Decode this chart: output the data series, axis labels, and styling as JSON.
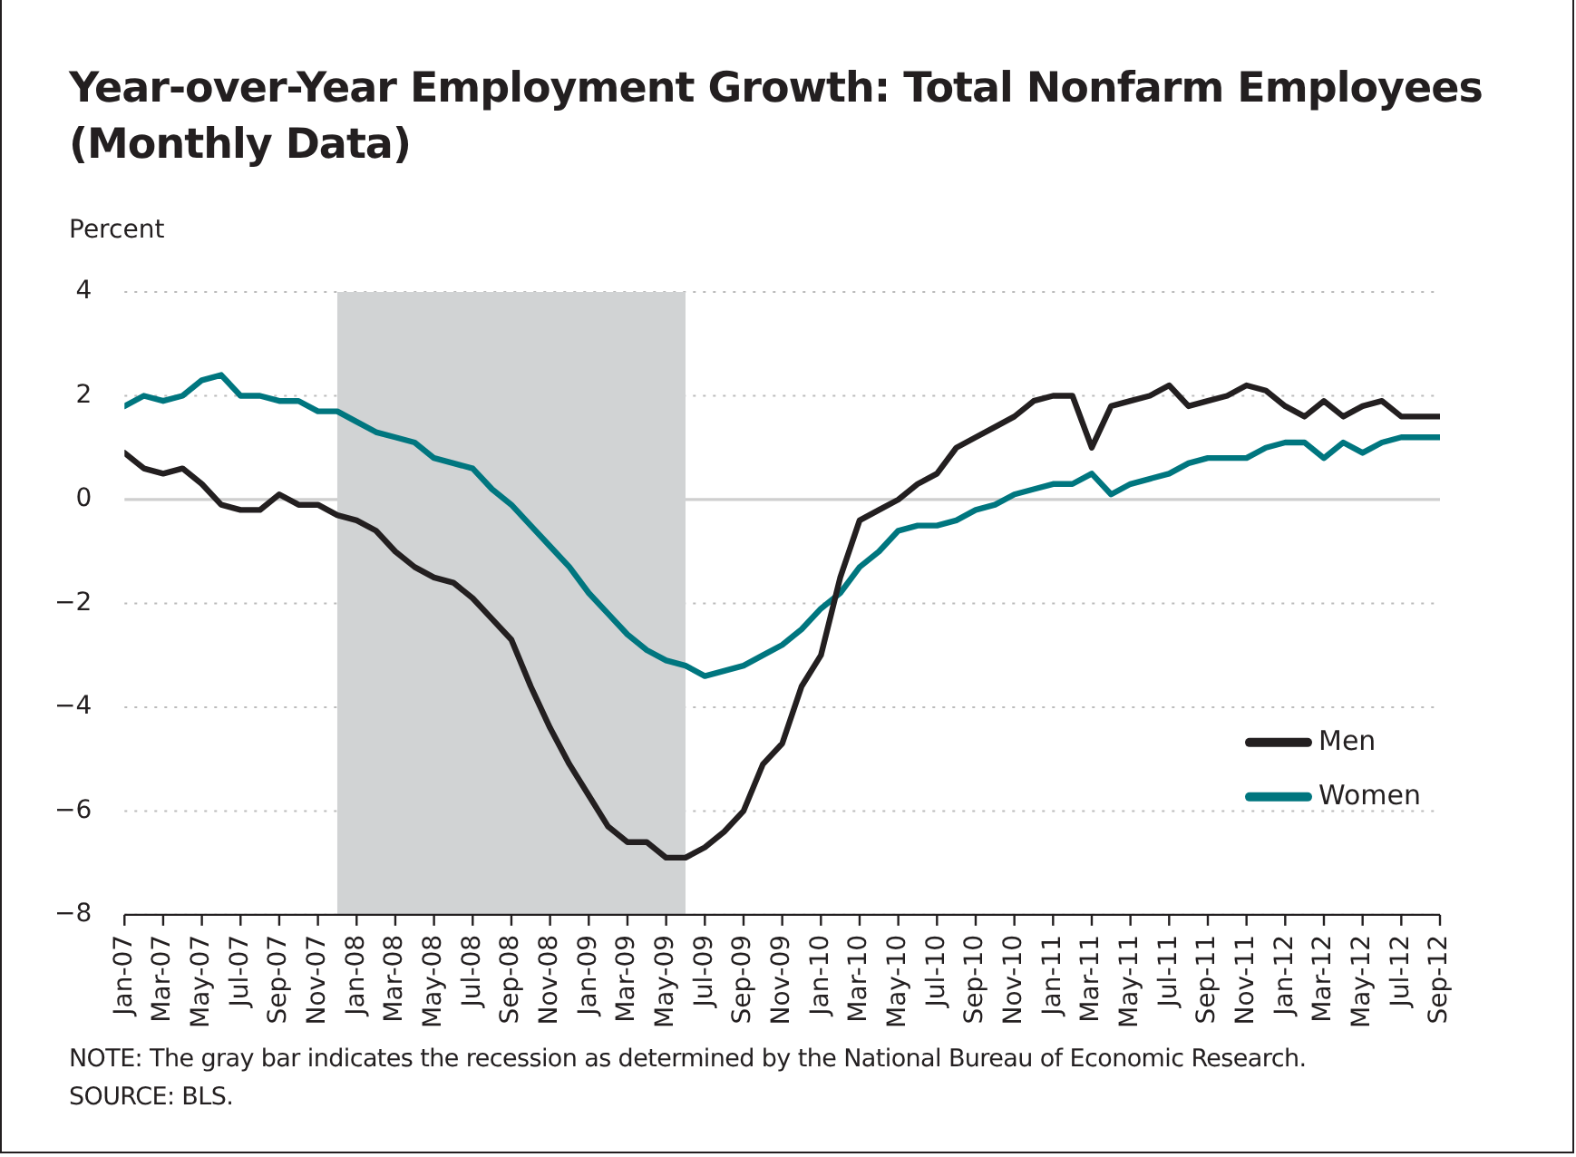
{
  "chart_data": {
    "type": "line",
    "title": "Year-over-Year Employment Growth: Total Nonfarm Employees (Monthly Data)",
    "ylabel": "Percent",
    "x": [
      "2007-01",
      "2007-02",
      "2007-03",
      "2007-04",
      "2007-05",
      "2007-06",
      "2007-07",
      "2007-08",
      "2007-09",
      "2007-10",
      "2007-11",
      "2007-12",
      "2008-01",
      "2008-02",
      "2008-03",
      "2008-04",
      "2008-05",
      "2008-06",
      "2008-07",
      "2008-08",
      "2008-09",
      "2008-10",
      "2008-11",
      "2008-12",
      "2009-01",
      "2009-02",
      "2009-03",
      "2009-04",
      "2009-05",
      "2009-06",
      "2009-07",
      "2009-08",
      "2009-09",
      "2009-10",
      "2009-11",
      "2009-12",
      "2010-01",
      "2010-02",
      "2010-03",
      "2010-04",
      "2010-05",
      "2010-06",
      "2010-07",
      "2010-08",
      "2010-09",
      "2010-10",
      "2010-11",
      "2010-12",
      "2011-01",
      "2011-02",
      "2011-03",
      "2011-04",
      "2011-05",
      "2011-06",
      "2011-07",
      "2011-08",
      "2011-09",
      "2011-10",
      "2011-11",
      "2011-12",
      "2012-01",
      "2012-02",
      "2012-03",
      "2012-04",
      "2012-05",
      "2012-06",
      "2012-07",
      "2012-08",
      "2012-09"
    ],
    "series": [
      {
        "name": "Men",
        "color": "#231f20",
        "values": [
          0.9,
          0.6,
          0.5,
          0.6,
          0.3,
          -0.1,
          -0.2,
          -0.2,
          0.1,
          -0.1,
          -0.1,
          -0.3,
          -0.4,
          -0.6,
          -1.0,
          -1.3,
          -1.5,
          -1.6,
          -1.9,
          -2.3,
          -2.7,
          -3.6,
          -4.4,
          -5.1,
          -5.7,
          -6.3,
          -6.6,
          -6.6,
          -6.9,
          -6.9,
          -6.7,
          -6.4,
          -6.0,
          -5.1,
          -4.7,
          -3.6,
          -3.0,
          -1.5,
          -0.4,
          -0.2,
          0.0,
          0.3,
          0.5,
          1.0,
          1.2,
          1.4,
          1.6,
          1.9,
          2.0,
          2.0,
          1.0,
          1.8,
          1.9,
          2.0,
          2.2,
          1.8,
          1.9,
          2.0,
          2.2,
          2.1,
          1.8,
          1.6,
          1.9,
          1.6,
          1.8,
          1.9,
          1.6,
          1.6,
          1.6
        ]
      },
      {
        "name": "Women",
        "color": "#00767f",
        "values": [
          1.8,
          2.0,
          1.9,
          2.0,
          2.3,
          2.4,
          2.0,
          2.0,
          1.9,
          1.9,
          1.7,
          1.7,
          1.5,
          1.3,
          1.2,
          1.1,
          0.8,
          0.7,
          0.6,
          0.2,
          -0.1,
          -0.5,
          -0.9,
          -1.3,
          -1.8,
          -2.2,
          -2.6,
          -2.9,
          -3.1,
          -3.2,
          -3.4,
          -3.3,
          -3.2,
          -3.0,
          -2.8,
          -2.5,
          -2.1,
          -1.8,
          -1.3,
          -1.0,
          -0.6,
          -0.5,
          -0.5,
          -0.4,
          -0.2,
          -0.1,
          0.1,
          0.2,
          0.3,
          0.3,
          0.5,
          0.1,
          0.3,
          0.4,
          0.5,
          0.7,
          0.8,
          0.8,
          0.8,
          1.0,
          1.1,
          1.1,
          0.8,
          1.1,
          0.9,
          1.1,
          1.2,
          1.2,
          1.2
        ]
      }
    ],
    "xlim": [
      "2007-01",
      "2012-09"
    ],
    "xticks": [
      {
        "value": "2007-01",
        "label": "Jan-07"
      },
      {
        "value": "2007-03",
        "label": "Mar-07"
      },
      {
        "value": "2007-05",
        "label": "May-07"
      },
      {
        "value": "2007-07",
        "label": "Jul-07"
      },
      {
        "value": "2007-09",
        "label": "Sep-07"
      },
      {
        "value": "2007-11",
        "label": "Nov-07"
      },
      {
        "value": "2008-01",
        "label": "Jan-08"
      },
      {
        "value": "2008-03",
        "label": "Mar-08"
      },
      {
        "value": "2008-05",
        "label": "May-08"
      },
      {
        "value": "2008-07",
        "label": "Jul-08"
      },
      {
        "value": "2008-09",
        "label": "Sep-08"
      },
      {
        "value": "2008-11",
        "label": "Nov-08"
      },
      {
        "value": "2009-01",
        "label": "Jan-09"
      },
      {
        "value": "2009-03",
        "label": "Mar-09"
      },
      {
        "value": "2009-05",
        "label": "May-09"
      },
      {
        "value": "2009-07",
        "label": "Jul-09"
      },
      {
        "value": "2009-09",
        "label": "Sep-09"
      },
      {
        "value": "2009-11",
        "label": "Nov-09"
      },
      {
        "value": "2010-01",
        "label": "Jan-10"
      },
      {
        "value": "2010-03",
        "label": "Mar-10"
      },
      {
        "value": "2010-05",
        "label": "May-10"
      },
      {
        "value": "2010-07",
        "label": "Jul-10"
      },
      {
        "value": "2010-09",
        "label": "Sep-10"
      },
      {
        "value": "2010-11",
        "label": "Nov-10"
      },
      {
        "value": "2011-01",
        "label": "Jan-11"
      },
      {
        "value": "2011-03",
        "label": "Mar-11"
      },
      {
        "value": "2011-05",
        "label": "May-11"
      },
      {
        "value": "2011-07",
        "label": "Jul-11"
      },
      {
        "value": "2011-09",
        "label": "Sep-11"
      },
      {
        "value": "2011-11",
        "label": "Nov-11"
      },
      {
        "value": "2012-01",
        "label": "Jan-12"
      },
      {
        "value": "2012-03",
        "label": "Mar-12"
      },
      {
        "value": "2012-05",
        "label": "May-12"
      },
      {
        "value": "2012-07",
        "label": "Jul-12"
      },
      {
        "value": "2012-09",
        "label": "Sep-12"
      }
    ],
    "ylim": [
      -8,
      4
    ],
    "yticks": [
      {
        "value": -8,
        "label": "−8"
      },
      {
        "value": -6,
        "label": "−6"
      },
      {
        "value": -4,
        "label": "−4"
      },
      {
        "value": -2,
        "label": "−2"
      },
      0,
      2,
      4
    ],
    "bands": [
      {
        "axis": "x",
        "from": "2007-12",
        "to": "2009-06",
        "color": "#d1d3d4"
      }
    ],
    "grid": "y",
    "legend": "bottom right",
    "marker": "none",
    "line_style": "solid",
    "annotations": [
      "NOTE: The gray bar indicates the recession as determined by the National Bureau of Economic Research.",
      "SOURCE: BLS."
    ]
  }
}
